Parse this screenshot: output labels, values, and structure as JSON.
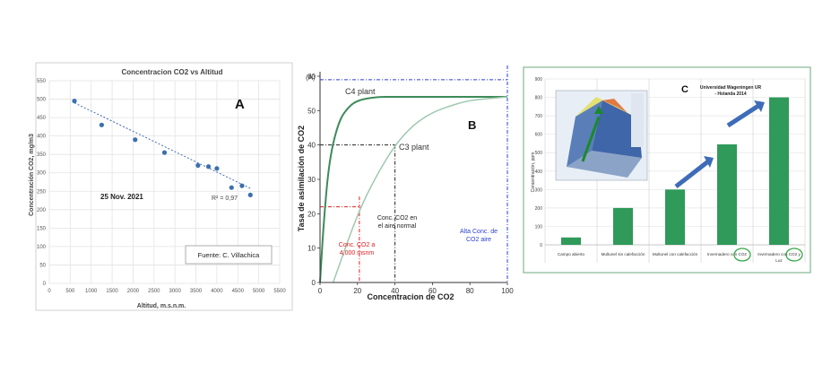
{
  "chart_data": [
    {
      "panel": "A",
      "type": "scatter",
      "title": "Concentracion CO2 vs Altitud",
      "xlabel": "Altitud, m.s.n.m.",
      "ylabel": "Concentración CO2, mg/m3",
      "xlim": [
        0,
        5500
      ],
      "ylim": [
        0,
        550
      ],
      "x_ticks": [
        "0",
        "500",
        "1000",
        "1500",
        "2000",
        "2500",
        "3000",
        "3500",
        "4000",
        "4500",
        "5000",
        "5500"
      ],
      "y_ticks": [
        "0",
        "50",
        "100",
        "150",
        "200",
        "250",
        "300",
        "350",
        "400",
        "450",
        "500",
        "550"
      ],
      "points": [
        {
          "x": 600,
          "y": 495
        },
        {
          "x": 1250,
          "y": 430
        },
        {
          "x": 2050,
          "y": 390
        },
        {
          "x": 2750,
          "y": 355
        },
        {
          "x": 3550,
          "y": 320
        },
        {
          "x": 3800,
          "y": 317
        },
        {
          "x": 4000,
          "y": 312
        },
        {
          "x": 4350,
          "y": 260
        },
        {
          "x": 4600,
          "y": 265
        },
        {
          "x": 4800,
          "y": 240
        }
      ],
      "trendline": {
        "x": [
          600,
          4800
        ],
        "y": [
          490,
          258
        ]
      },
      "grid": true,
      "annotations": {
        "letter": "A",
        "date": "25 Nov. 2021",
        "r2": "R² = 0,97",
        "source": "Fuente: C. Villachica"
      }
    },
    {
      "panel": "B",
      "type": "line",
      "xlabel": "Concentracion de CO2",
      "ylabel": "Tasa de asimilación de CO2",
      "xlim": [
        0,
        100
      ],
      "ylim": [
        0,
        60
      ],
      "x_ticks": [
        "0",
        "20",
        "40",
        "60",
        "80",
        "100"
      ],
      "y_ticks": [
        "0",
        "10",
        "20",
        "30",
        "40",
        "50",
        "60"
      ],
      "series": [
        {
          "name": "C4 plant",
          "x": [
            0,
            2,
            5,
            10,
            15,
            20,
            30,
            40,
            60,
            80,
            100
          ],
          "y": [
            0,
            18,
            36,
            47,
            51,
            53,
            54,
            54,
            54,
            54,
            54
          ]
        },
        {
          "name": "C3 plant",
          "x": [
            7,
            20,
            30,
            40,
            50,
            60,
            70,
            80,
            90,
            100
          ],
          "y": [
            0,
            20,
            31,
            40,
            46,
            49.5,
            51.5,
            53,
            53.5,
            54
          ]
        }
      ],
      "annotations": {
        "letter": "B",
        "panel_tag": "(A)",
        "c4_label": "C4 plant",
        "c3_label": "C3 plant",
        "normal_air": [
          "Conc. CO2 en",
          "el aire normal"
        ],
        "conc_4000": [
          "Conc. CO2 a",
          "4,000 msnm"
        ],
        "high_conc": [
          "Alta Conc. de",
          "CO2 aire"
        ]
      }
    },
    {
      "panel": "C",
      "type": "bar",
      "ylabel": "Concentración, ppm",
      "ylim": [
        0,
        900
      ],
      "y_ticks": [
        "0",
        "100",
        "200",
        "300",
        "400",
        "500",
        "600",
        "700",
        "800",
        "900"
      ],
      "categories": [
        "Campo abierto",
        "Multunel sin calefacción",
        "Multunel con calefacción",
        "Invernadero con CO2",
        "Invernadero con CO2 y Luz"
      ],
      "values": [
        40,
        200,
        300,
        545,
        800
      ],
      "color": "#2f9a5a",
      "annotations": {
        "letter": "C",
        "source": [
          "Universidad Wageningen UR",
          "- Holanda 2014"
        ]
      }
    }
  ]
}
